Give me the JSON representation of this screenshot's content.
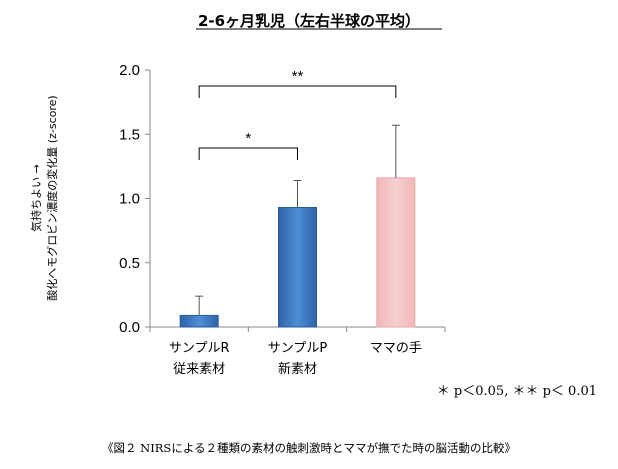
{
  "chart_data": {
    "type": "bar",
    "title": "2-6ヶ月乳児（左右半球の平均）",
    "ylabel_lines": [
      "気持ちよい →",
      "酸化ヘモグロビン濃度の変化量 (z-score)"
    ],
    "ylim": [
      0,
      2.0
    ],
    "yticks": [
      "0.0",
      "0.5",
      "1.0",
      "1.5",
      "2.0"
    ],
    "categories": [
      {
        "line1": "サンプルR",
        "line2": "従来素材"
      },
      {
        "line1": "サンプルP",
        "line2": "新素材"
      },
      {
        "line1": "ママの手",
        "line2": ""
      }
    ],
    "values": [
      0.09,
      0.93,
      1.16
    ],
    "error_upper": [
      0.24,
      1.14,
      1.57
    ],
    "colors": [
      "#3f7bc7",
      "#3f7bc7",
      "#f4c2c4"
    ],
    "significance": [
      {
        "from": 0,
        "to": 1,
        "label": "*"
      },
      {
        "from": 0,
        "to": 2,
        "label": "**"
      }
    ],
    "grid": false
  },
  "footnote": "＊ p＜0.05, ＊＊ p＜ 0.01",
  "caption": "《図２ NIRSによる２種類の素材の触刺激時とママが撫でた時の脳活動の比較》"
}
